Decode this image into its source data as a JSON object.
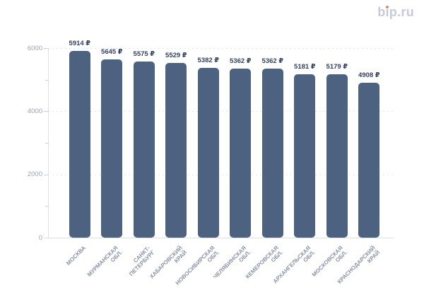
{
  "logo": {
    "text": "bip.ru",
    "part_b": "b",
    "part_i": "ı",
    "part_rest": "p.ru"
  },
  "chart_data": {
    "type": "bar",
    "title": "",
    "xlabel": "",
    "ylabel": "",
    "categories": [
      "МОСКВА",
      "МУРМАНСКАЯ ОБЛ.",
      "САНКТ-ПЕТЕРБУРГ",
      "ХАБАРОВСКИЙ КРАЙ",
      "НОВОСИБИРСКАЯ ОБЛ.",
      "ЧЕЛЯБИНСКАЯ ОБЛ.",
      "КЕМЕРОВСКАЯ ОБЛ.",
      "АРХАНГЕЛЬСКАЯ ОБЛ.",
      "МОСКОВСКАЯ ОБЛ.",
      "КРАСНОДАРСКИЙ КРАЙ"
    ],
    "category_lines": [
      [
        "МОСКВА"
      ],
      [
        "МУРМАНСКАЯ",
        "ОБЛ."
      ],
      [
        "САНКТ-",
        "ПЕТЕРБУРГ"
      ],
      [
        "ХАБАРОВСКИЙ",
        "КРАЙ"
      ],
      [
        "НОВОСИБИРСКАЯ",
        "ОБЛ."
      ],
      [
        "ЧЕЛЯБИНСКАЯ",
        "ОБЛ."
      ],
      [
        "КЕМЕРОВСКАЯ",
        "ОБЛ."
      ],
      [
        "АРХАНГЕЛЬСКАЯ",
        "ОБЛ."
      ],
      [
        "МОСКОВСКАЯ",
        "ОБЛ."
      ],
      [
        "КРАСНОДАРСКИЙ",
        "КРАЙ"
      ]
    ],
    "values": [
      5914,
      5645,
      5575,
      5529,
      5382,
      5362,
      5362,
      5181,
      5179,
      4908
    ],
    "value_labels": [
      "5914 ₽",
      "5645 ₽",
      "5575 ₽",
      "5529 ₽",
      "5382 ₽",
      "5362 ₽",
      "5362 ₽",
      "5181 ₽",
      "5179 ₽",
      "4908 ₽"
    ],
    "currency_suffix": "₽",
    "ylim": [
      0,
      6000
    ],
    "yticks_labeled": [
      0,
      2000,
      4000,
      6000
    ],
    "yticks_minor": [
      1000,
      3000,
      5000
    ],
    "gridlines": [
      2000,
      4000,
      6000
    ],
    "legend": "none",
    "grid_style": "dashed-horizontal",
    "colors": {
      "bar": "#4d6181",
      "value_label": "#344262",
      "axis_label": "#9aa2b4",
      "category_label": "#8a93a6",
      "grid": "#e3e6ec",
      "axis_line": "#dcdfe6",
      "tick": "#ccd0da",
      "logo": "#c7cada",
      "logo_dot": "#e8826b",
      "background": "#ffffff"
    }
  }
}
